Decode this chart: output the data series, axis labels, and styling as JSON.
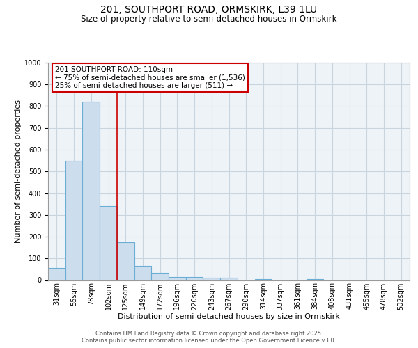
{
  "title_line1": "201, SOUTHPORT ROAD, ORMSKIRK, L39 1LU",
  "title_line2": "Size of property relative to semi-detached houses in Ormskirk",
  "categories": [
    "31sqm",
    "55sqm",
    "78sqm",
    "102sqm",
    "125sqm",
    "149sqm",
    "172sqm",
    "196sqm",
    "220sqm",
    "243sqm",
    "267sqm",
    "290sqm",
    "314sqm",
    "337sqm",
    "361sqm",
    "384sqm",
    "408sqm",
    "431sqm",
    "455sqm",
    "478sqm",
    "502sqm"
  ],
  "values": [
    55,
    550,
    820,
    340,
    175,
    65,
    35,
    15,
    15,
    10,
    10,
    0,
    5,
    0,
    0,
    5,
    0,
    0,
    0,
    0,
    0
  ],
  "bar_color": "#ccdded",
  "bar_edge_color": "#6aaed6",
  "bar_edge_width": 0.8,
  "grid_color": "#c8d4de",
  "background_color": "#eef3f7",
  "ylabel": "Number of semi-detached properties",
  "xlabel": "Distribution of semi-detached houses by size in Ormskirk",
  "ylim_max": 1000,
  "yticks": [
    0,
    100,
    200,
    300,
    400,
    500,
    600,
    700,
    800,
    900,
    1000
  ],
  "property_line_color": "#cc0000",
  "property_line_x": 3.5,
  "annotation_line1": "201 SOUTHPORT ROAD: 110sqm",
  "annotation_line2": "← 75% of semi-detached houses are smaller (1,536)",
  "annotation_line3": "25% of semi-detached houses are larger (511) →",
  "annotation_border_color": "#cc0000",
  "footer_line1": "Contains HM Land Registry data © Crown copyright and database right 2025.",
  "footer_line2": "Contains public sector information licensed under the Open Government Licence v3.0.",
  "title1_fontsize": 10,
  "title2_fontsize": 8.5,
  "ylabel_fontsize": 8,
  "xlabel_fontsize": 8,
  "tick_fontsize": 7,
  "footer_fontsize": 6,
  "ann_fontsize": 7.5
}
